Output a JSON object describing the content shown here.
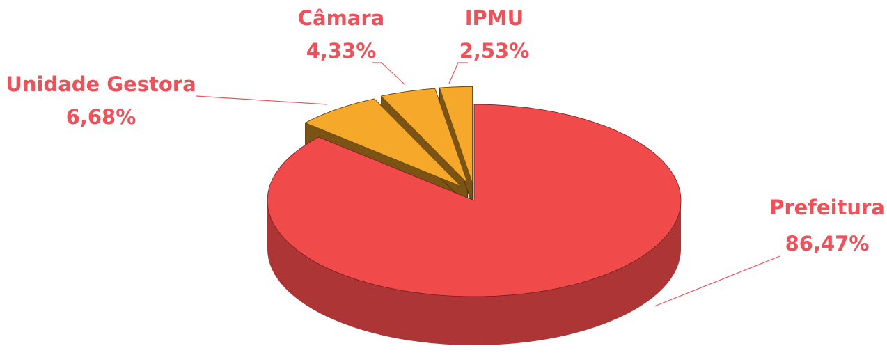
{
  "chart_data": {
    "type": "pie",
    "categories": [
      "Prefeitura",
      "Unidade Gestora",
      "Câmara",
      "IPMU"
    ],
    "values": [
      86.47,
      6.68,
      4.33,
      2.53
    ],
    "value_labels": [
      "86,47%",
      "6,68%",
      "4,33%",
      "2,53%"
    ],
    "colors": [
      "#f04a4a",
      "#f5a82a",
      "#f5a82a",
      "#f5a82a"
    ],
    "exploded": [
      false,
      true,
      true,
      true
    ]
  }
}
